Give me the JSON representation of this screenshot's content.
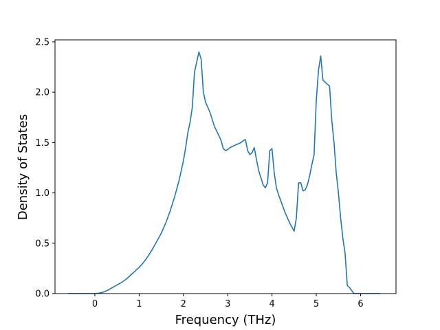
{
  "chart_data": {
    "type": "line",
    "title": "",
    "xlabel": "Frequency (THz)",
    "ylabel": "Density of States",
    "xlim": [
      -0.9,
      6.8
    ],
    "ylim": [
      0,
      2.52
    ],
    "xticks": [
      0,
      1,
      2,
      3,
      4,
      5,
      6
    ],
    "xtick_labels": [
      "0",
      "1",
      "2",
      "3",
      "4",
      "5",
      "6"
    ],
    "yticks": [
      0.0,
      0.5,
      1.0,
      1.5,
      2.0,
      2.5
    ],
    "ytick_labels": [
      "0.0",
      "0.5",
      "1.0",
      "1.5",
      "2.0",
      "2.5"
    ],
    "grid": false,
    "line_color": "#1f77b4",
    "series": [
      {
        "x": [
          -0.6,
          -0.4,
          -0.2,
          0.0,
          0.1,
          0.2,
          0.3,
          0.4,
          0.5,
          0.6,
          0.7,
          0.8,
          0.9,
          1.0,
          1.1,
          1.2,
          1.3,
          1.4,
          1.5,
          1.6,
          1.7,
          1.8,
          1.9,
          2.0,
          2.05,
          2.1,
          2.15,
          2.2,
          2.25,
          2.3,
          2.35,
          2.4,
          2.45,
          2.5,
          2.55,
          2.6,
          2.7,
          2.8,
          2.85,
          2.9,
          2.95,
          3.0,
          3.05,
          3.1,
          3.15,
          3.2,
          3.25,
          3.3,
          3.35,
          3.4,
          3.45,
          3.5,
          3.55,
          3.6,
          3.65,
          3.7,
          3.75,
          3.8,
          3.85,
          3.9,
          3.95,
          4.0,
          4.05,
          4.1,
          4.15,
          4.2,
          4.3,
          4.4,
          4.45,
          4.5,
          4.55,
          4.6,
          4.65,
          4.7,
          4.75,
          4.8,
          4.85,
          4.9,
          4.95,
          5.0,
          5.05,
          5.1,
          5.15,
          5.2,
          5.25,
          5.3,
          5.35,
          5.4,
          5.45,
          5.5,
          5.55,
          5.6,
          5.65,
          5.7,
          5.75,
          5.8,
          5.85,
          6.0,
          6.2,
          6.45
        ],
        "y": [
          0.0,
          0.0,
          0.0,
          0.0,
          0.005,
          0.015,
          0.035,
          0.06,
          0.085,
          0.11,
          0.14,
          0.18,
          0.22,
          0.26,
          0.31,
          0.37,
          0.44,
          0.52,
          0.6,
          0.7,
          0.82,
          0.96,
          1.12,
          1.32,
          1.45,
          1.6,
          1.7,
          1.85,
          2.2,
          2.3,
          2.4,
          2.33,
          2.0,
          1.9,
          1.85,
          1.8,
          1.66,
          1.57,
          1.52,
          1.44,
          1.42,
          1.43,
          1.45,
          1.46,
          1.47,
          1.48,
          1.49,
          1.5,
          1.52,
          1.53,
          1.42,
          1.38,
          1.4,
          1.45,
          1.33,
          1.22,
          1.15,
          1.08,
          1.05,
          1.1,
          1.42,
          1.44,
          1.2,
          1.05,
          0.98,
          0.92,
          0.8,
          0.7,
          0.66,
          0.62,
          0.75,
          1.1,
          1.1,
          1.02,
          1.03,
          1.08,
          1.17,
          1.28,
          1.38,
          1.92,
          2.22,
          2.36,
          2.12,
          2.1,
          2.08,
          2.06,
          1.72,
          1.5,
          1.2,
          1.0,
          0.75,
          0.55,
          0.4,
          0.08,
          0.06,
          0.03,
          0.0,
          0.0,
          0.0,
          0.0
        ]
      }
    ]
  }
}
